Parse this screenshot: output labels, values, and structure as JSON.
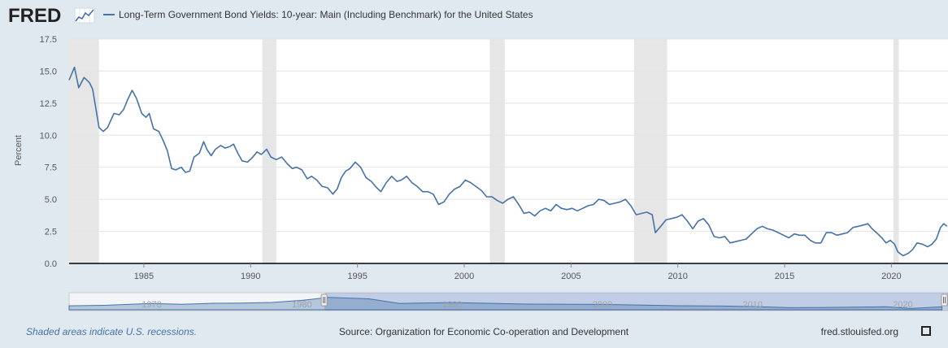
{
  "brand": {
    "logo_text": "FRED"
  },
  "chart_data": {
    "type": "line",
    "title": "Long-Term Government Bond Yields: 10-year: Main (Including Benchmark) for the United States",
    "ylabel": "Percent",
    "xlabel": "",
    "ylim": [
      0,
      17.5
    ],
    "xlim": [
      1981.5,
      2022.65
    ],
    "y_ticks": [
      0,
      2.5,
      5,
      7.5,
      10,
      12.5,
      15,
      17.5
    ],
    "y_tick_labels": [
      "0.0",
      "2.5",
      "5.0",
      "7.5",
      "10.0",
      "12.5",
      "15.0",
      "17.5"
    ],
    "x_ticks": [
      1985,
      1990,
      1995,
      2000,
      2005,
      2010,
      2015,
      2020
    ],
    "x_tick_labels": [
      "1985",
      "1990",
      "1995",
      "2000",
      "2005",
      "2010",
      "2015",
      "2020"
    ],
    "grid": true,
    "legend": "top-left",
    "recessions": [
      [
        1981.5,
        1982.9
      ],
      [
        1990.55,
        1991.2
      ],
      [
        2001.2,
        2001.9
      ],
      [
        2007.95,
        2009.5
      ],
      [
        2020.1,
        2020.35
      ]
    ],
    "series": [
      {
        "name": "Long-Term Government Bond Yields: 10-year: Main (Including Benchmark) for the United States",
        "color": "#4572a7",
        "points": [
          [
            1981.5,
            14.3
          ],
          [
            1981.75,
            15.3
          ],
          [
            1981.95,
            13.7
          ],
          [
            1982.2,
            14.5
          ],
          [
            1982.45,
            14.1
          ],
          [
            1982.6,
            13.6
          ],
          [
            1982.9,
            10.6
          ],
          [
            1983.1,
            10.3
          ],
          [
            1983.3,
            10.6
          ],
          [
            1983.6,
            11.7
          ],
          [
            1983.85,
            11.6
          ],
          [
            1984.05,
            12.0
          ],
          [
            1984.25,
            12.8
          ],
          [
            1984.45,
            13.5
          ],
          [
            1984.65,
            12.9
          ],
          [
            1984.9,
            11.7
          ],
          [
            1985.1,
            11.4
          ],
          [
            1985.25,
            11.7
          ],
          [
            1985.45,
            10.5
          ],
          [
            1985.7,
            10.3
          ],
          [
            1985.9,
            9.6
          ],
          [
            1986.1,
            8.8
          ],
          [
            1986.3,
            7.4
          ],
          [
            1986.5,
            7.3
          ],
          [
            1986.75,
            7.5
          ],
          [
            1986.95,
            7.1
          ],
          [
            1987.15,
            7.2
          ],
          [
            1987.35,
            8.3
          ],
          [
            1987.6,
            8.6
          ],
          [
            1987.8,
            9.5
          ],
          [
            1987.95,
            8.9
          ],
          [
            1988.15,
            8.4
          ],
          [
            1988.35,
            8.9
          ],
          [
            1988.6,
            9.2
          ],
          [
            1988.8,
            9.0
          ],
          [
            1989.0,
            9.1
          ],
          [
            1989.2,
            9.3
          ],
          [
            1989.4,
            8.6
          ],
          [
            1989.6,
            8.0
          ],
          [
            1989.85,
            7.9
          ],
          [
            1990.05,
            8.2
          ],
          [
            1990.3,
            8.7
          ],
          [
            1990.5,
            8.5
          ],
          [
            1990.75,
            8.9
          ],
          [
            1990.95,
            8.3
          ],
          [
            1991.2,
            8.1
          ],
          [
            1991.45,
            8.3
          ],
          [
            1991.7,
            7.8
          ],
          [
            1991.95,
            7.4
          ],
          [
            1992.15,
            7.5
          ],
          [
            1992.4,
            7.3
          ],
          [
            1992.65,
            6.6
          ],
          [
            1992.85,
            6.8
          ],
          [
            1993.1,
            6.5
          ],
          [
            1993.35,
            6.0
          ],
          [
            1993.6,
            5.9
          ],
          [
            1993.85,
            5.4
          ],
          [
            1994.05,
            5.8
          ],
          [
            1994.25,
            6.7
          ],
          [
            1994.45,
            7.2
          ],
          [
            1994.65,
            7.4
          ],
          [
            1994.9,
            7.9
          ],
          [
            1995.15,
            7.5
          ],
          [
            1995.4,
            6.7
          ],
          [
            1995.65,
            6.4
          ],
          [
            1995.9,
            5.9
          ],
          [
            1996.1,
            5.6
          ],
          [
            1996.35,
            6.3
          ],
          [
            1996.6,
            6.8
          ],
          [
            1996.85,
            6.4
          ],
          [
            1997.05,
            6.5
          ],
          [
            1997.3,
            6.8
          ],
          [
            1997.55,
            6.3
          ],
          [
            1997.8,
            6.0
          ],
          [
            1998.05,
            5.6
          ],
          [
            1998.3,
            5.6
          ],
          [
            1998.55,
            5.4
          ],
          [
            1998.8,
            4.6
          ],
          [
            1999.05,
            4.8
          ],
          [
            1999.3,
            5.4
          ],
          [
            1999.55,
            5.8
          ],
          [
            1999.8,
            6.0
          ],
          [
            2000.05,
            6.5
          ],
          [
            2000.3,
            6.3
          ],
          [
            2000.55,
            6.0
          ],
          [
            2000.8,
            5.7
          ],
          [
            2001.05,
            5.2
          ],
          [
            2001.3,
            5.2
          ],
          [
            2001.55,
            4.9
          ],
          [
            2001.8,
            4.7
          ],
          [
            2002.05,
            5.0
          ],
          [
            2002.3,
            5.2
          ],
          [
            2002.55,
            4.6
          ],
          [
            2002.8,
            3.9
          ],
          [
            2003.05,
            4.0
          ],
          [
            2003.3,
            3.7
          ],
          [
            2003.55,
            4.1
          ],
          [
            2003.8,
            4.3
          ],
          [
            2004.05,
            4.1
          ],
          [
            2004.3,
            4.6
          ],
          [
            2004.55,
            4.3
          ],
          [
            2004.8,
            4.2
          ],
          [
            2005.05,
            4.3
          ],
          [
            2005.3,
            4.1
          ],
          [
            2005.55,
            4.3
          ],
          [
            2005.8,
            4.5
          ],
          [
            2006.05,
            4.6
          ],
          [
            2006.3,
            5.0
          ],
          [
            2006.55,
            4.9
          ],
          [
            2006.8,
            4.6
          ],
          [
            2007.05,
            4.7
          ],
          [
            2007.3,
            4.8
          ],
          [
            2007.55,
            5.0
          ],
          [
            2007.8,
            4.5
          ],
          [
            2008.05,
            3.8
          ],
          [
            2008.3,
            3.9
          ],
          [
            2008.55,
            4.0
          ],
          [
            2008.8,
            3.8
          ],
          [
            2008.95,
            2.4
          ],
          [
            2009.2,
            2.9
          ],
          [
            2009.45,
            3.4
          ],
          [
            2009.7,
            3.5
          ],
          [
            2009.95,
            3.6
          ],
          [
            2010.2,
            3.8
          ],
          [
            2010.45,
            3.3
          ],
          [
            2010.7,
            2.7
          ],
          [
            2010.95,
            3.3
          ],
          [
            2011.2,
            3.5
          ],
          [
            2011.45,
            3.0
          ],
          [
            2011.7,
            2.1
          ],
          [
            2011.95,
            2.0
          ],
          [
            2012.2,
            2.1
          ],
          [
            2012.45,
            1.6
          ],
          [
            2012.7,
            1.7
          ],
          [
            2012.95,
            1.8
          ],
          [
            2013.2,
            1.9
          ],
          [
            2013.45,
            2.3
          ],
          [
            2013.7,
            2.7
          ],
          [
            2013.95,
            2.9
          ],
          [
            2014.2,
            2.7
          ],
          [
            2014.45,
            2.6
          ],
          [
            2014.7,
            2.4
          ],
          [
            2014.95,
            2.2
          ],
          [
            2015.2,
            2.0
          ],
          [
            2015.45,
            2.3
          ],
          [
            2015.7,
            2.2
          ],
          [
            2015.95,
            2.2
          ],
          [
            2016.2,
            1.8
          ],
          [
            2016.45,
            1.6
          ],
          [
            2016.7,
            1.6
          ],
          [
            2016.95,
            2.4
          ],
          [
            2017.2,
            2.4
          ],
          [
            2017.45,
            2.2
          ],
          [
            2017.7,
            2.3
          ],
          [
            2017.95,
            2.4
          ],
          [
            2018.2,
            2.8
          ],
          [
            2018.45,
            2.9
          ],
          [
            2018.7,
            3.0
          ],
          [
            2018.9,
            3.1
          ],
          [
            2019.1,
            2.7
          ],
          [
            2019.3,
            2.4
          ],
          [
            2019.55,
            2.0
          ],
          [
            2019.75,
            1.6
          ],
          [
            2019.95,
            1.8
          ],
          [
            2020.15,
            1.5
          ],
          [
            2020.3,
            0.9
          ],
          [
            2020.55,
            0.6
          ],
          [
            2020.8,
            0.8
          ],
          [
            2021.0,
            1.1
          ],
          [
            2021.2,
            1.6
          ],
          [
            2021.45,
            1.5
          ],
          [
            2021.7,
            1.3
          ],
          [
            2021.9,
            1.5
          ],
          [
            2022.1,
            1.9
          ],
          [
            2022.3,
            2.8
          ],
          [
            2022.45,
            3.1
          ],
          [
            2022.6,
            2.9
          ]
        ]
      }
    ],
    "navigator": {
      "range_start_year": 1981.5,
      "range_end_year": 2022.65,
      "x_ticks": [
        1970,
        1980,
        1990,
        2000,
        2010,
        2020
      ],
      "x_tick_labels": [
        "1970",
        "1980",
        "1990",
        "2000",
        "2010",
        "2020"
      ]
    }
  },
  "footer": {
    "note": "Shaded areas indicate U.S. recessions.",
    "source": "Source: Organization for Economic Co-operation and Development",
    "site": "fred.stlouisfed.org"
  }
}
